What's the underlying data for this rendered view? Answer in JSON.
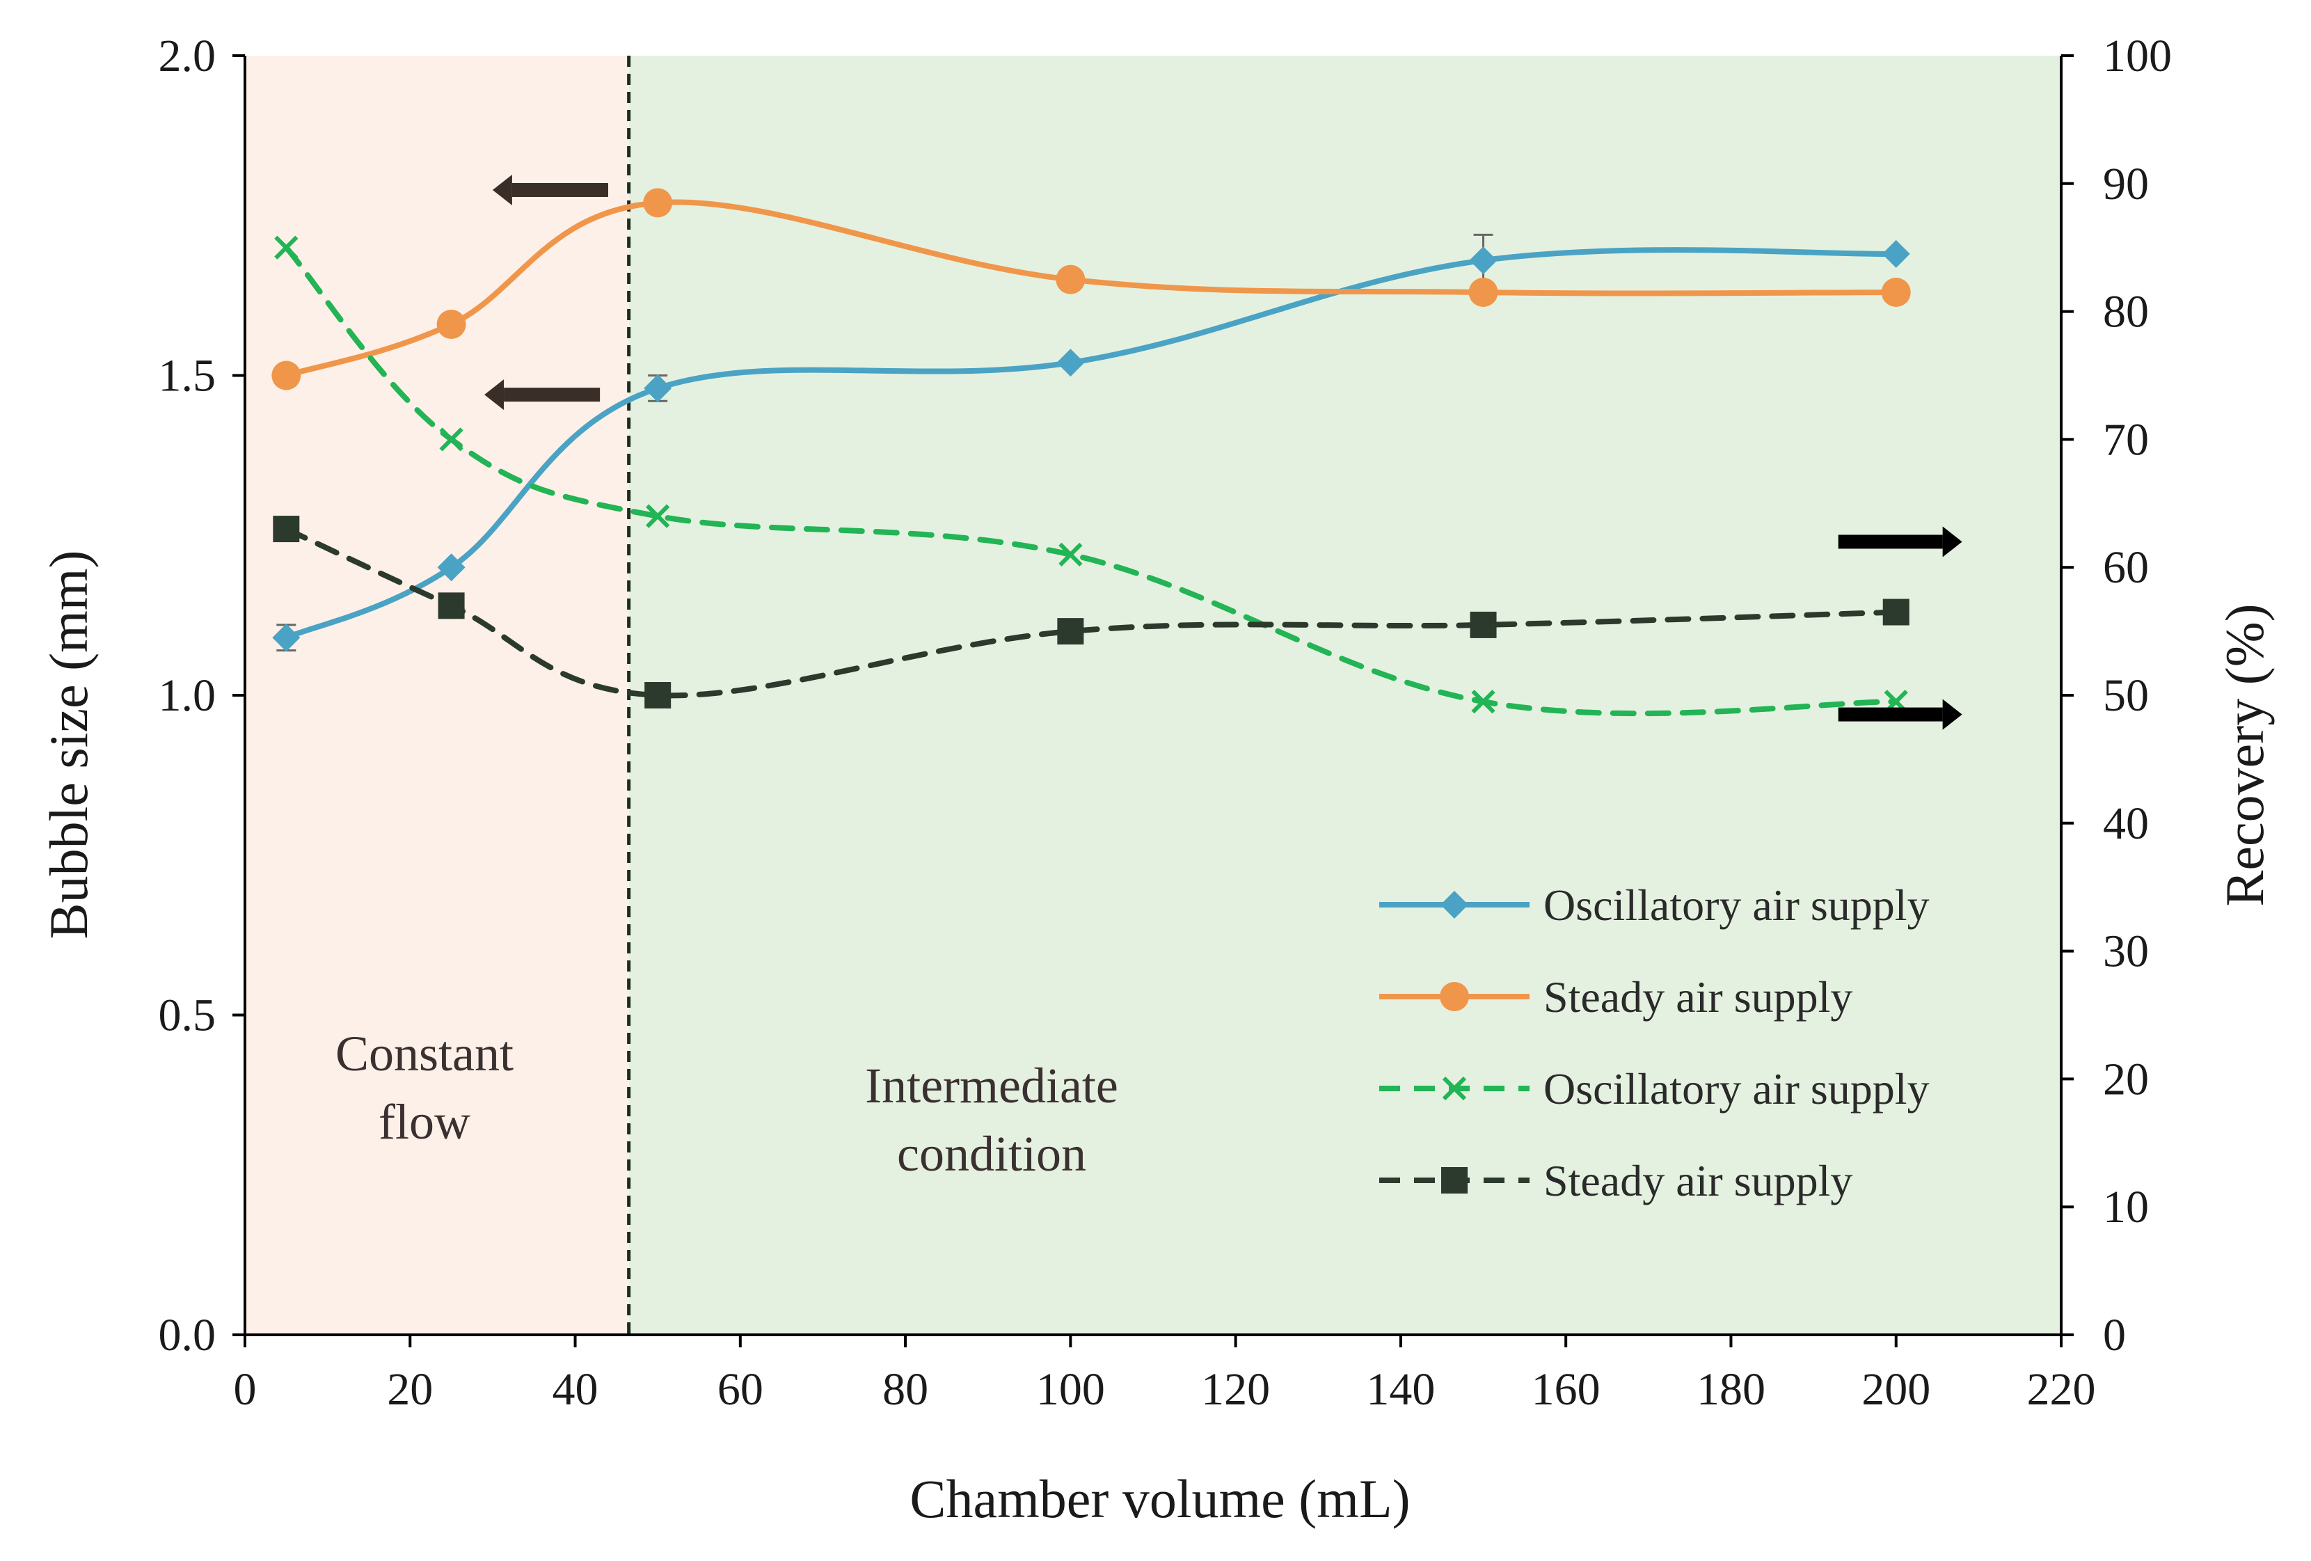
{
  "chart_data": {
    "type": "line",
    "x": [
      5,
      25,
      50,
      100,
      150,
      200
    ],
    "xlabel": "Chamber volume (mL)",
    "ylabel": "Bubble size (mm)",
    "y2label": "Recovery (%)",
    "xlim": [
      0,
      220
    ],
    "ylim": [
      0,
      2.0
    ],
    "y2lim": [
      0,
      100
    ],
    "x_ticks": [
      "0",
      "20",
      "40",
      "60",
      "80",
      "100",
      "120",
      "140",
      "160",
      "180",
      "200",
      "220"
    ],
    "y_ticks": [
      "0.0",
      "0.5",
      "1.0",
      "1.5",
      "2.0"
    ],
    "y2_ticks": [
      "0",
      "10",
      "20",
      "30",
      "40",
      "50",
      "60",
      "70",
      "80",
      "90",
      "100"
    ],
    "regions": [
      {
        "label_line1": "Constant",
        "label_line2": "flow",
        "x_start": 0,
        "x_end": 46.5,
        "color": "#fdf0e8"
      },
      {
        "label_line1": "Intermediate",
        "label_line2": "condition",
        "x_start": 46.5,
        "x_end": 220,
        "color": "#e5f1e0"
      }
    ],
    "divider_x": 46.5,
    "series": [
      {
        "name": "Oscillatory air supply",
        "axis": "left",
        "color": "#4aa3c4",
        "dash": "solid",
        "marker": "diamond",
        "values": [
          1.09,
          1.2,
          1.48,
          1.52,
          1.68,
          1.69
        ],
        "error": [
          0.02,
          0,
          0.02,
          0,
          0.04,
          0
        ]
      },
      {
        "name": "Steady air supply",
        "axis": "left",
        "color": "#f0964a",
        "dash": "solid",
        "marker": "circle",
        "values": [
          1.5,
          1.58,
          1.77,
          1.65,
          1.63,
          1.63
        ],
        "error": [
          0,
          0,
          0,
          0,
          0,
          0
        ]
      },
      {
        "name": "Oscillatory air supply",
        "axis": "right",
        "color": "#22b455",
        "dash": "dashed",
        "marker": "x",
        "values": [
          85,
          70,
          64,
          61,
          49.5,
          49.5
        ],
        "error": [
          0,
          0,
          0,
          0,
          0,
          0
        ]
      },
      {
        "name": "Steady air supply",
        "axis": "right",
        "color": "#2b3a2c",
        "dash": "dashed",
        "marker": "square",
        "values": [
          63,
          57,
          50,
          55,
          55.5,
          56.5
        ],
        "error": [
          0,
          0,
          0,
          0,
          0,
          0
        ]
      }
    ],
    "annotations": [
      {
        "type": "arrow",
        "direction": "left",
        "axis": "left",
        "x_start": 44,
        "x_end": 30,
        "y": 1.79,
        "color": "#3a2e28"
      },
      {
        "type": "arrow",
        "direction": "left",
        "axis": "left",
        "x_start": 43,
        "x_end": 29,
        "y": 1.47,
        "color": "#3a2e28"
      },
      {
        "type": "arrow",
        "direction": "right",
        "axis": "right",
        "x_start": 193,
        "x_end": 208,
        "y": 62,
        "color": "#000000"
      },
      {
        "type": "arrow",
        "direction": "right",
        "axis": "right",
        "x_start": 193,
        "x_end": 208,
        "y": 48.5,
        "color": "#000000"
      }
    ],
    "legend": "bottom-right"
  }
}
